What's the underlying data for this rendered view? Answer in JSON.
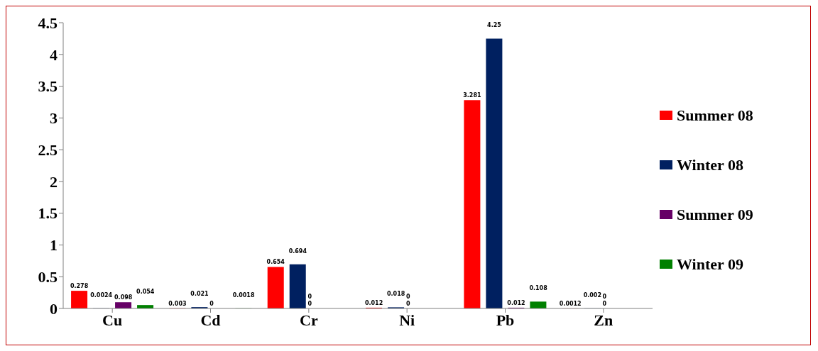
{
  "chart_data": {
    "type": "bar",
    "categories": [
      "Cu",
      "Cd",
      "Cr",
      "Ni",
      "Pb",
      "Zn"
    ],
    "series": [
      {
        "name": "Summer 08",
        "color": "#ff0000",
        "values": [
          0.278,
          0.003,
          0.654,
          0.012,
          3.281,
          0.0012
        ]
      },
      {
        "name": "Winter 08",
        "color": "#002060",
        "values": [
          0.0024,
          0.021,
          0.694,
          0.018,
          4.25,
          0.002
        ]
      },
      {
        "name": "Summer 09",
        "color": "#660066",
        "values": [
          0.098,
          0,
          0,
          0,
          0.012,
          0
        ]
      },
      {
        "name": "Winter 09",
        "color": "#008000",
        "values": [
          0.054,
          0.0018,
          0,
          0,
          0.108,
          0
        ]
      }
    ],
    "ylim": [
      0,
      4.5
    ],
    "yticks": [
      0,
      0.5,
      1,
      1.5,
      2,
      2.5,
      3,
      3.5,
      4,
      4.5
    ],
    "grid": false,
    "legend": "right",
    "data_labels": true
  }
}
